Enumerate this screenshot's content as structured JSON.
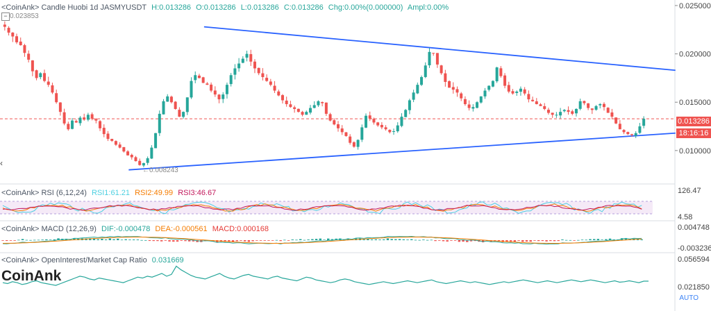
{
  "main_legend": {
    "prefix": "<CoinAnk> Candle  Huobi 1d JASMYUSDT",
    "h": "H:0.013286",
    "o": "O:0.013286",
    "l": "L:0.013286",
    "c": "C:0.013286",
    "chg": "Chg:0.00%(0.000000)",
    "ampl": "Ampl:0.00%"
  },
  "rsi_legend": {
    "prefix": "<CoinAnk> RSI  (6,12,24)",
    "rsi1": "RSI1:61.21",
    "rsi2": "RSI2:49.99",
    "rsi3": "RSI3:46.67"
  },
  "macd_legend": {
    "prefix": "<CoinAnk> MACD  (12,26,9)",
    "dif": "DIF:-0.000478",
    "dea": "DEA:-0.000561",
    "macd": "MACD:0.000168"
  },
  "oi_legend": {
    "prefix": "<CoinAnk> OpenInterest/Market Cap Ratio",
    "value": "0.031669"
  },
  "price_tag": "0.013286",
  "countdown_tag": "18:16:16",
  "high_marker": "0.023853",
  "low_marker": "←0.008243",
  "watermark": "CoinAnk",
  "auto_label": "AUTO",
  "collapse_glyph": "−",
  "left_chevron": "‹",
  "colors": {
    "up": "#26a69a",
    "down": "#ef5350",
    "trendline": "#2962ff",
    "rsi1": "#4dd0e1",
    "rsi2": "#f57c00",
    "rsi3": "#c2185b",
    "dif": "#26a69a",
    "dea": "#f57c00",
    "macd_pos": "#26a69a",
    "macd_neg": "#ef5350",
    "oi": "#26a69a"
  },
  "chart_data": [
    {
      "type": "candlestick",
      "title": "Huobi 1d JASMYUSDT",
      "y_ticks": [
        0.025,
        0.02,
        0.015,
        0.01
      ],
      "y_tick_labels": [
        "0.025000",
        "0.020000",
        "0.015000",
        "0.010000"
      ],
      "ylim": [
        0.0069,
        0.025
      ],
      "close_series": [
        0.0228,
        0.0222,
        0.0218,
        0.0212,
        0.0209,
        0.0201,
        0.0194,
        0.0182,
        0.0175,
        0.018,
        0.0172,
        0.0168,
        0.016,
        0.015,
        0.014,
        0.0128,
        0.0122,
        0.0131,
        0.0129,
        0.0134,
        0.0132,
        0.0137,
        0.0133,
        0.0131,
        0.0123,
        0.0117,
        0.0112,
        0.011,
        0.0106,
        0.0103,
        0.0099,
        0.0095,
        0.0093,
        0.0089,
        0.0085,
        0.0087,
        0.0092,
        0.0103,
        0.0118,
        0.0138,
        0.0151,
        0.0156,
        0.015,
        0.0143,
        0.0135,
        0.014,
        0.0155,
        0.0172,
        0.0178,
        0.0175,
        0.017,
        0.0168,
        0.0162,
        0.0158,
        0.0153,
        0.0158,
        0.0168,
        0.0178,
        0.0185,
        0.019,
        0.0195,
        0.02,
        0.0192,
        0.0185,
        0.018,
        0.0176,
        0.0172,
        0.0168,
        0.0162,
        0.0157,
        0.0152,
        0.0148,
        0.0145,
        0.0143,
        0.014,
        0.0137,
        0.014,
        0.0144,
        0.0147,
        0.0151,
        0.0149,
        0.0138,
        0.0131,
        0.0127,
        0.0123,
        0.0119,
        0.0115,
        0.0108,
        0.0104,
        0.0111,
        0.0124,
        0.0136,
        0.0133,
        0.0129,
        0.0126,
        0.0124,
        0.0122,
        0.0119,
        0.012,
        0.0126,
        0.0135,
        0.0142,
        0.0152,
        0.016,
        0.0168,
        0.0176,
        0.0188,
        0.0202,
        0.0201,
        0.0189,
        0.018,
        0.0171,
        0.0165,
        0.0163,
        0.016,
        0.0154,
        0.0148,
        0.0144,
        0.0145,
        0.015,
        0.0156,
        0.0162,
        0.0167,
        0.0172,
        0.0186,
        0.0177,
        0.0167,
        0.0161,
        0.0159,
        0.0161,
        0.0164,
        0.0159,
        0.0153,
        0.0151,
        0.0148,
        0.0146,
        0.0143,
        0.0139,
        0.0137,
        0.0137,
        0.014,
        0.0142,
        0.014,
        0.0138,
        0.0143,
        0.0151,
        0.0149,
        0.0144,
        0.0142,
        0.0146,
        0.0148,
        0.0145,
        0.0139,
        0.0135,
        0.0128,
        0.0122,
        0.0119,
        0.0117,
        0.0116,
        0.0118,
        0.0125,
        0.013286
      ],
      "trendlines": [
        {
          "from": [
            0.287,
            0.0228
          ],
          "to": [
            0.95,
            0.0183
          ]
        },
        {
          "from": [
            0.181,
            0.008
          ],
          "to": [
            0.95,
            0.0118
          ]
        }
      ],
      "current_price": 0.013286,
      "high": 0.023853,
      "low": 0.008243
    },
    {
      "type": "line",
      "title": "RSI (6,12,24)",
      "y_tick_labels": [
        "126.47",
        "4.58"
      ],
      "series": [
        {
          "name": "RSI1"
        },
        {
          "name": "RSI2"
        },
        {
          "name": "RSI3"
        }
      ]
    },
    {
      "type": "bar",
      "title": "MACD (12,26,9)",
      "y_tick_labels": [
        "0.004748",
        "-0.003236"
      ],
      "series": [
        {
          "name": "DIF"
        },
        {
          "name": "DEA"
        },
        {
          "name": "MACD"
        }
      ]
    },
    {
      "type": "line",
      "title": "OpenInterest/Market Cap Ratio",
      "y_tick_labels": [
        "0.056594",
        "0.021850"
      ],
      "last": 0.031669,
      "values": [
        0.03,
        0.029,
        0.031,
        0.03,
        0.028,
        0.029,
        0.031,
        0.032,
        0.03,
        0.029,
        0.028,
        0.027,
        0.029,
        0.031,
        0.033,
        0.035,
        0.037,
        0.036,
        0.034,
        0.033,
        0.035,
        0.034,
        0.033,
        0.032,
        0.031,
        0.03,
        0.032,
        0.034,
        0.036,
        0.035,
        0.037,
        0.036,
        0.038,
        0.04,
        0.037,
        0.039,
        0.048,
        0.044,
        0.041,
        0.038,
        0.036,
        0.035,
        0.034,
        0.036,
        0.038,
        0.04,
        0.037,
        0.035,
        0.034,
        0.036,
        0.038,
        0.039,
        0.037,
        0.036,
        0.035,
        0.034,
        0.036,
        0.037,
        0.035,
        0.034,
        0.033,
        0.032,
        0.034,
        0.036,
        0.035,
        0.033,
        0.032,
        0.031,
        0.03,
        0.031,
        0.033,
        0.034,
        0.033,
        0.031,
        0.03,
        0.029,
        0.028,
        0.029,
        0.03,
        0.031,
        0.03,
        0.029,
        0.03,
        0.031,
        0.032,
        0.031,
        0.03,
        0.031,
        0.032,
        0.033,
        0.031,
        0.03,
        0.029,
        0.03,
        0.031,
        0.032,
        0.031,
        0.03,
        0.031,
        0.03,
        0.029,
        0.028,
        0.029,
        0.03,
        0.031,
        0.03,
        0.031,
        0.032,
        0.033,
        0.032,
        0.031,
        0.03,
        0.031,
        0.032,
        0.031,
        0.03,
        0.031,
        0.032,
        0.033,
        0.032,
        0.031,
        0.032,
        0.033,
        0.032,
        0.031,
        0.03,
        0.031,
        0.032,
        0.0305,
        0.031,
        0.032,
        0.031,
        0.03,
        0.0316,
        0.031669
      ]
    }
  ]
}
